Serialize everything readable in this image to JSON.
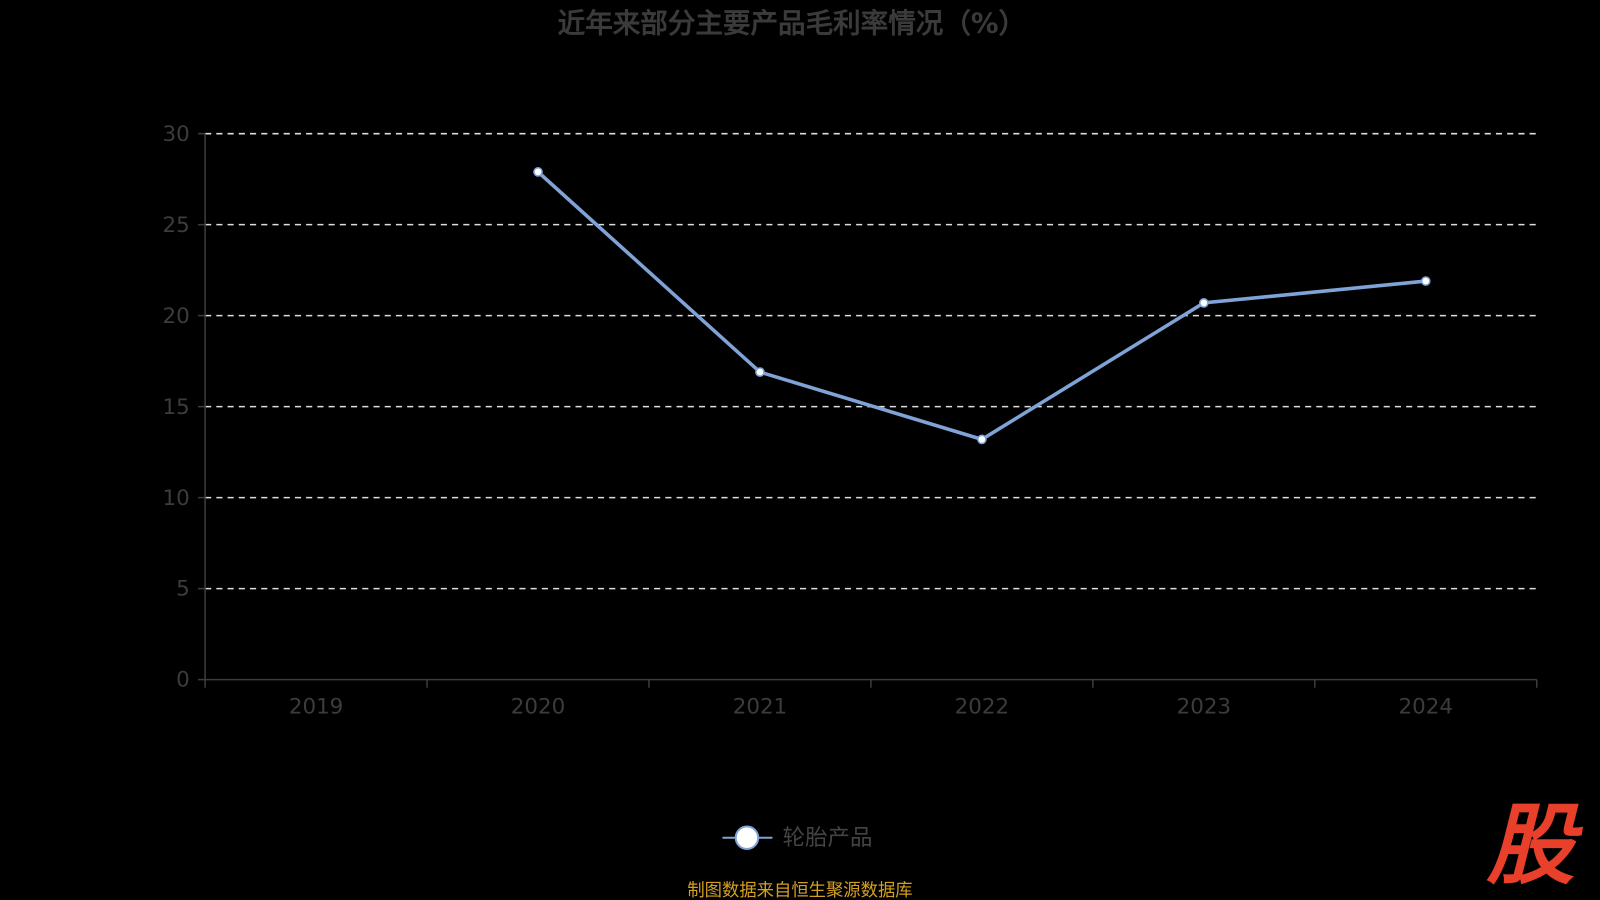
{
  "chart_data": {
    "type": "line",
    "title": "近年来部分主要产品毛利率情况（%）",
    "categories": [
      "2019",
      "2020",
      "2021",
      "2022",
      "2023",
      "2024"
    ],
    "series": [
      {
        "name": "轮胎产品",
        "values": [
          null,
          27.9,
          16.9,
          13.2,
          20.7,
          21.9
        ],
        "color": "#7fa3d6"
      }
    ],
    "ylim": [
      0,
      30
    ],
    "yticks": [
      "0",
      "5",
      "10",
      "15",
      "20",
      "25",
      "30"
    ],
    "grid": true,
    "grid_style": "dashed",
    "legend_position": "bottom"
  },
  "footer": {
    "source": "制图数据来自恒生聚源数据库",
    "logo": "股"
  },
  "colors": {
    "background": "#000000",
    "line": "#7fa3d6",
    "grid": "#dddddd",
    "axis": "#3c3c3c",
    "source": "#d4a020",
    "logo": "#e8402a"
  }
}
